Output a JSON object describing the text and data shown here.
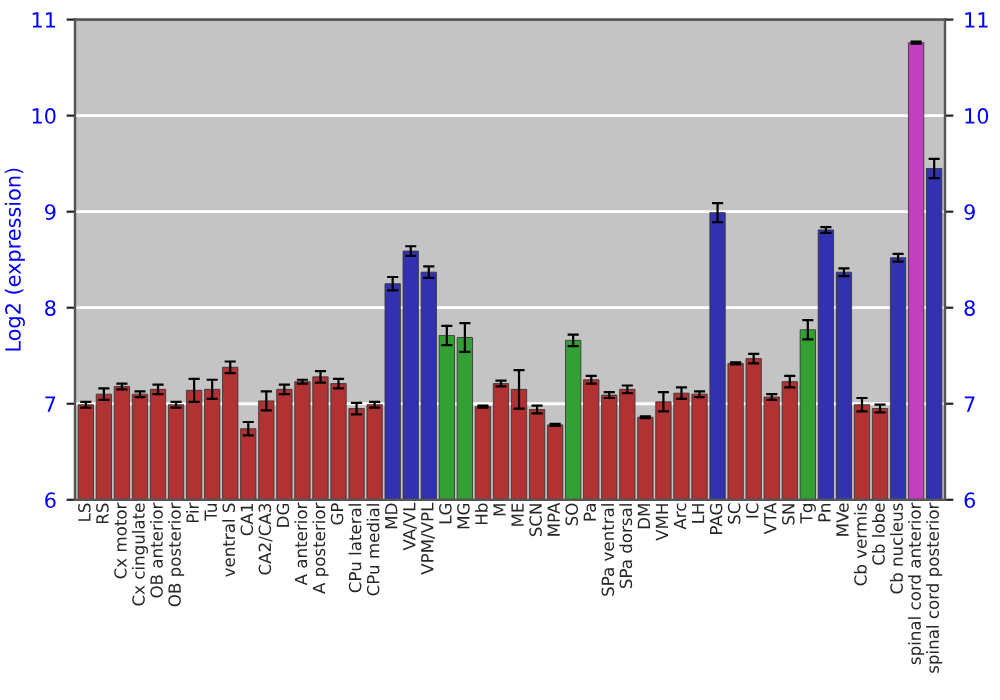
{
  "chart_data": {
    "type": "bar",
    "ylabel": "Log2 (expression)",
    "categories": [
      "LS",
      "RS",
      "Cx motor",
      "Cx cingulate",
      "OB anterior",
      "OB posterior",
      "Pir",
      "Tu",
      "ventral S",
      "CA1",
      "CA2/CA3",
      "DG",
      "A anterior",
      "A posterior",
      "GP",
      "CPu lateral",
      "CPu medial",
      "MD",
      "VA/VL",
      "VPM/VPL",
      "LG",
      "MG",
      "Hb",
      "M",
      "ME",
      "SCN",
      "MPA",
      "SO",
      "Pa",
      "SPa ventral",
      "SPa dorsal",
      "DM",
      "VMH",
      "Arc",
      "LH",
      "PAG",
      "SC",
      "IC",
      "VTA",
      "SN",
      "Tg",
      "Pn",
      "MVe",
      "Cb vermis",
      "Cb lobe",
      "Cb nucleus",
      "spinal cord anterior",
      "spinal cord posterior"
    ],
    "values": [
      6.99,
      7.1,
      7.18,
      7.1,
      7.15,
      6.99,
      7.14,
      7.15,
      7.38,
      6.74,
      7.03,
      7.15,
      7.23,
      7.28,
      7.21,
      6.95,
      6.99,
      8.25,
      8.59,
      8.37,
      7.71,
      7.69,
      6.97,
      7.21,
      7.15,
      6.94,
      6.78,
      7.66,
      7.25,
      7.09,
      7.15,
      6.86,
      7.02,
      7.11,
      7.1,
      8.99,
      7.42,
      7.47,
      7.07,
      7.23,
      7.77,
      8.81,
      8.37,
      6.99,
      6.95,
      8.52,
      10.76,
      9.45
    ],
    "errors": [
      0.03,
      0.06,
      0.03,
      0.03,
      0.05,
      0.03,
      0.12,
      0.1,
      0.06,
      0.07,
      0.1,
      0.05,
      0.02,
      0.06,
      0.05,
      0.06,
      0.03,
      0.07,
      0.05,
      0.06,
      0.1,
      0.15,
      0.01,
      0.03,
      0.2,
      0.04,
      0.01,
      0.06,
      0.04,
      0.03,
      0.04,
      0.01,
      0.1,
      0.06,
      0.03,
      0.1,
      0.01,
      0.05,
      0.03,
      0.06,
      0.1,
      0.03,
      0.04,
      0.07,
      0.04,
      0.04,
      0.01,
      0.1
    ],
    "colors": [
      "#b03232",
      "#b03232",
      "#b03232",
      "#b03232",
      "#b03232",
      "#b03232",
      "#b03232",
      "#b03232",
      "#b03232",
      "#b03232",
      "#b03232",
      "#b03232",
      "#b03232",
      "#b03232",
      "#b03232",
      "#b03232",
      "#b03232",
      "#3232b0",
      "#3232b0",
      "#3232b0",
      "#32a032",
      "#32a032",
      "#b03232",
      "#b03232",
      "#b03232",
      "#b03232",
      "#b03232",
      "#32a032",
      "#b03232",
      "#b03232",
      "#b03232",
      "#b03232",
      "#b03232",
      "#b03232",
      "#b03232",
      "#3232b0",
      "#b03232",
      "#b03232",
      "#b03232",
      "#b03232",
      "#32a032",
      "#3232b0",
      "#3232b0",
      "#b03232",
      "#b03232",
      "#3232b0",
      "#c040c0",
      "#3232b0"
    ],
    "ylim": [
      6,
      11
    ],
    "yticks": [
      6,
      7,
      8,
      9,
      10,
      11
    ],
    "y2lim": [
      6,
      11
    ],
    "y2ticks": [
      6,
      7,
      8,
      9,
      10,
      11
    ],
    "grid": "y"
  }
}
